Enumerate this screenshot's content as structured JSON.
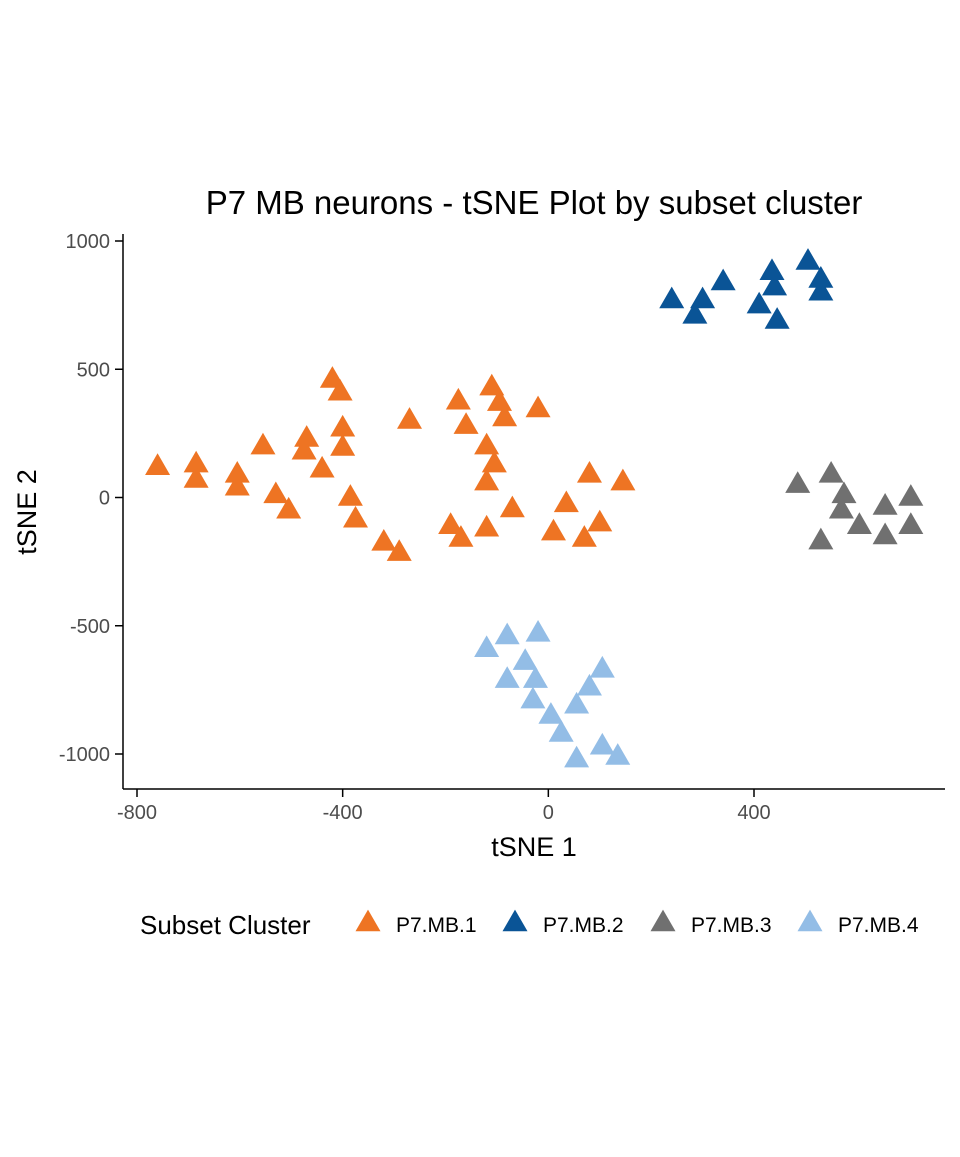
{
  "chart_data": {
    "type": "scatter",
    "title": "P7 MB neurons - tSNE Plot by subset cluster",
    "xlabel": "tSNE 1",
    "ylabel": "tSNE 2",
    "xlim": [
      -825,
      770
    ],
    "ylim": [
      -1140,
      1000
    ],
    "x_ticks": [
      -800,
      -400,
      0,
      400
    ],
    "y_ticks": [
      1000,
      500,
      0,
      -500,
      -1000
    ],
    "x_tick_labels": [
      "-800",
      "-400",
      "0",
      "400"
    ],
    "y_tick_labels": [
      "1000",
      "500",
      "0",
      "-500",
      "-1000"
    ],
    "grid": false,
    "marker": "triangle",
    "legend": {
      "title": "Subset Cluster",
      "position": "bottom"
    },
    "series": [
      {
        "name": "P7.MB.1",
        "color": "#EE7423",
        "points": [
          [
            -760,
            120
          ],
          [
            -685,
            130
          ],
          [
            -685,
            70
          ],
          [
            -605,
            90
          ],
          [
            -605,
            40
          ],
          [
            -555,
            200
          ],
          [
            -530,
            10
          ],
          [
            -505,
            -50
          ],
          [
            -470,
            230
          ],
          [
            -475,
            180
          ],
          [
            -440,
            110
          ],
          [
            -420,
            460
          ],
          [
            -405,
            410
          ],
          [
            -400,
            270
          ],
          [
            -400,
            195
          ],
          [
            -385,
            0
          ],
          [
            -375,
            -85
          ],
          [
            -320,
            -175
          ],
          [
            -290,
            -215
          ],
          [
            -270,
            300
          ],
          [
            -175,
            375
          ],
          [
            -160,
            280
          ],
          [
            -190,
            -110
          ],
          [
            -170,
            -160
          ],
          [
            -110,
            430
          ],
          [
            -95,
            370
          ],
          [
            -85,
            310
          ],
          [
            -120,
            200
          ],
          [
            -105,
            130
          ],
          [
            -120,
            60
          ],
          [
            -120,
            -120
          ],
          [
            -70,
            -45
          ],
          [
            -20,
            345
          ],
          [
            10,
            -135
          ],
          [
            35,
            -25
          ],
          [
            70,
            -160
          ],
          [
            80,
            90
          ],
          [
            100,
            -100
          ],
          [
            145,
            60
          ]
        ]
      },
      {
        "name": "P7.MB.2",
        "color": "#0A5496",
        "points": [
          [
            240,
            770
          ],
          [
            285,
            710
          ],
          [
            300,
            770
          ],
          [
            340,
            840
          ],
          [
            410,
            750
          ],
          [
            435,
            880
          ],
          [
            440,
            820
          ],
          [
            445,
            690
          ],
          [
            505,
            920
          ],
          [
            530,
            850
          ],
          [
            530,
            800
          ]
        ]
      },
      {
        "name": "P7.MB.3",
        "color": "#707070",
        "points": [
          [
            485,
            50
          ],
          [
            550,
            90
          ],
          [
            575,
            10
          ],
          [
            570,
            -50
          ],
          [
            530,
            -170
          ],
          [
            605,
            -110
          ],
          [
            655,
            -35
          ],
          [
            655,
            -150
          ],
          [
            705,
            0
          ],
          [
            705,
            -110
          ]
        ]
      },
      {
        "name": "P7.MB.4",
        "color": "#93BDE6",
        "points": [
          [
            -120,
            -590
          ],
          [
            -80,
            -540
          ],
          [
            -80,
            -710
          ],
          [
            -45,
            -640
          ],
          [
            -20,
            -530
          ],
          [
            -30,
            -790
          ],
          [
            -25,
            -710
          ],
          [
            5,
            -850
          ],
          [
            25,
            -920
          ],
          [
            55,
            -1020
          ],
          [
            55,
            -810
          ],
          [
            80,
            -740
          ],
          [
            105,
            -670
          ],
          [
            105,
            -970
          ],
          [
            135,
            -1010
          ]
        ]
      }
    ]
  }
}
